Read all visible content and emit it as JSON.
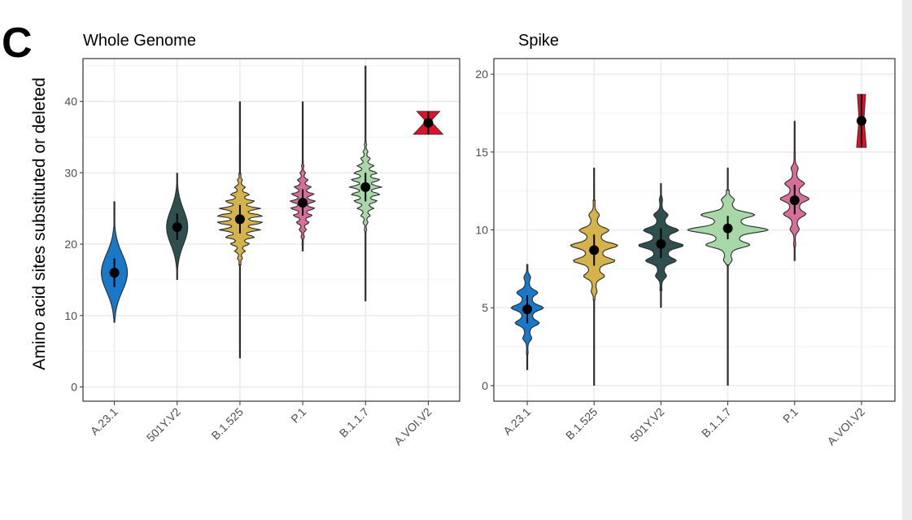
{
  "panel_label": "C",
  "y_axis_label": "Amino acid sites substituted or deleted",
  "colors": {
    "A.23.1": "#1a78c8",
    "501Y.V2": "#2f4f4f",
    "B.1.525": "#d4b44a",
    "P.1": "#d66f9a",
    "B.1.1.7": "#a8d8a8",
    "A.VOI.V2": "#e0102a"
  },
  "chart_data": [
    {
      "type": "violin",
      "title": "Whole Genome",
      "xlabel": "",
      "ylabel": "Amino acid sites substituted or deleted",
      "ylim": [
        -2,
        46
      ],
      "yticks": [
        0,
        10,
        20,
        30,
        40
      ],
      "grid": true,
      "categories": [
        "A.23.1",
        "501Y.V2",
        "B.1.525",
        "P.1",
        "B.1.1.7",
        "A.VOI.V2"
      ],
      "series": [
        {
          "name": "A.23.1",
          "mean": 16,
          "min": 9,
          "max": 26,
          "sd_low": 14,
          "sd_high": 18
        },
        {
          "name": "501Y.V2",
          "mean": 22.4,
          "min": 15,
          "max": 30,
          "sd_low": 20.6,
          "sd_high": 24.3
        },
        {
          "name": "B.1.525",
          "mean": 23.5,
          "min": 4,
          "max": 40,
          "sd_low": 21.5,
          "sd_high": 25.5
        },
        {
          "name": "P.1",
          "mean": 25.8,
          "min": 19,
          "max": 40,
          "sd_low": 24,
          "sd_high": 27.7
        },
        {
          "name": "B.1.1.7",
          "mean": 28,
          "min": 12,
          "max": 45,
          "sd_low": 26,
          "sd_high": 30
        },
        {
          "name": "A.VOI.V2",
          "mean": 37,
          "min": 35.4,
          "max": 38.6,
          "sd_low": 35.4,
          "sd_high": 38.6
        }
      ]
    },
    {
      "type": "violin",
      "title": "Spike",
      "xlabel": "",
      "ylabel": "",
      "ylim": [
        -1,
        21
      ],
      "yticks": [
        0,
        5,
        10,
        15,
        20
      ],
      "grid": true,
      "categories": [
        "A.23.1",
        "B.1.525",
        "501Y.V2",
        "B.1.1.7",
        "P.1",
        "A.VOI.V2"
      ],
      "series": [
        {
          "name": "A.23.1",
          "mean": 4.9,
          "min": 1,
          "max": 7,
          "sd_low": 4,
          "sd_high": 5.8
        },
        {
          "name": "B.1.525",
          "mean": 8.7,
          "min": 0,
          "max": 14,
          "sd_low": 7.7,
          "sd_high": 9.7
        },
        {
          "name": "501Y.V2",
          "mean": 9.1,
          "min": 5,
          "max": 13,
          "sd_low": 8.2,
          "sd_high": 10.1
        },
        {
          "name": "B.1.1.7",
          "mean": 10.1,
          "min": 0,
          "max": 14,
          "sd_low": 9.4,
          "sd_high": 10.9
        },
        {
          "name": "P.1",
          "mean": 11.9,
          "min": 8,
          "max": 17,
          "sd_low": 11,
          "sd_high": 12.9
        },
        {
          "name": "A.VOI.V2",
          "mean": 17,
          "min": 15.3,
          "max": 18.7,
          "sd_low": 15.3,
          "sd_high": 18.7
        }
      ]
    }
  ]
}
